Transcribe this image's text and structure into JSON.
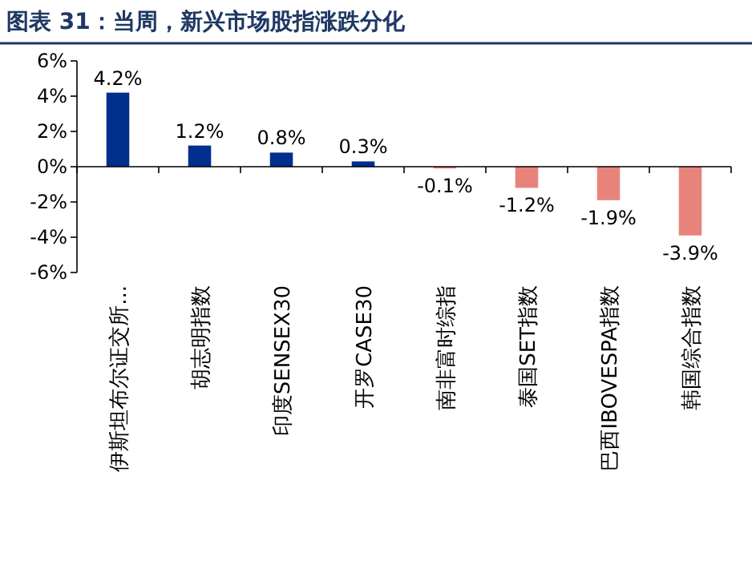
{
  "chart_data": {
    "type": "bar",
    "title": "图表 31：当周，新兴市场股指涨跌分化",
    "categories": [
      "伊斯坦布尔证交所...",
      "胡志明指数",
      "印度SENSEX30",
      "开罗CASE30",
      "南非富时综指",
      "泰国SET指数",
      "巴西IBOVESPA指数",
      "韩国综合指数"
    ],
    "values": [
      4.2,
      1.2,
      0.8,
      0.3,
      -0.1,
      -1.2,
      -1.9,
      -3.9
    ],
    "value_labels": [
      "4.2%",
      "1.2%",
      "0.8%",
      "0.3%",
      "-0.1%",
      "-1.2%",
      "-1.9%",
      "-3.9%"
    ],
    "colors": [
      "#002f8e",
      "#002f8e",
      "#002f8e",
      "#002f8e",
      "#e8837b",
      "#e8837b",
      "#e8837b",
      "#e8837b"
    ],
    "ylim": [
      -6,
      6
    ],
    "yticks": [
      {
        "value": 6,
        "label": "6%"
      },
      {
        "value": 4,
        "label": "4%"
      },
      {
        "value": 2,
        "label": "2%"
      },
      {
        "value": 0,
        "label": "0%"
      },
      {
        "value": -2,
        "label": "-2%"
      },
      {
        "value": -4,
        "label": "-4%"
      },
      {
        "value": -6,
        "label": "-6%"
      }
    ]
  }
}
